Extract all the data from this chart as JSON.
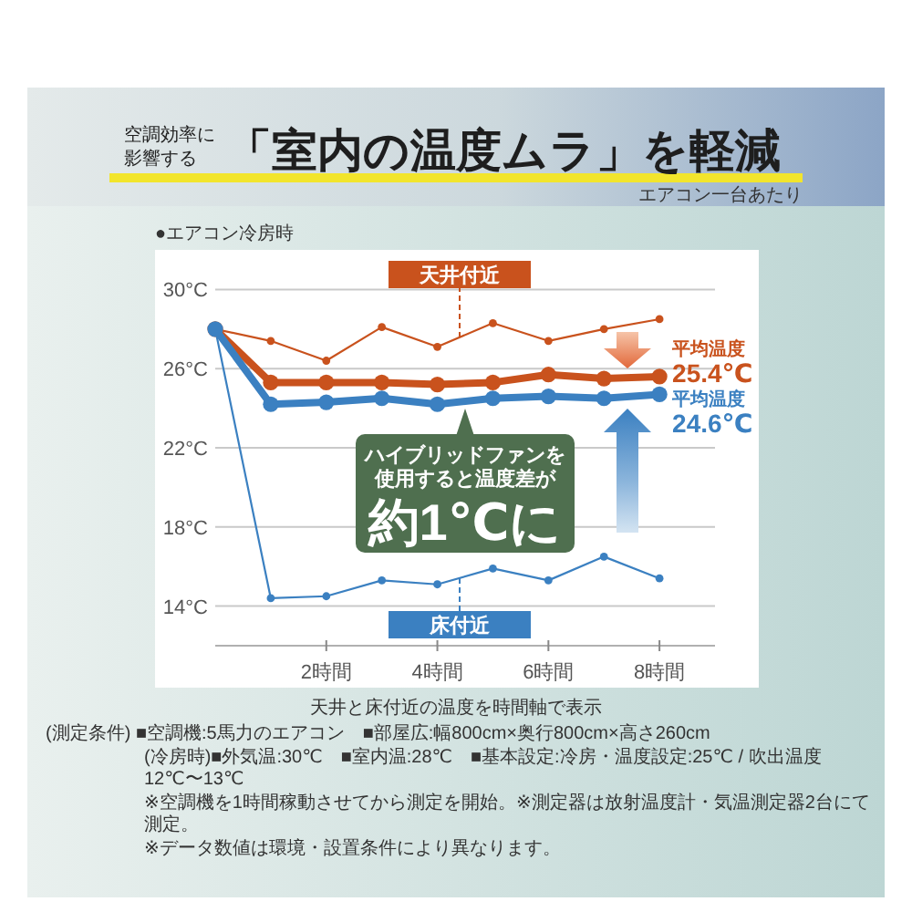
{
  "chart_data": {
    "type": "line",
    "title": "「室内の温度ムラ」を軽減",
    "subtitle": "エアコン一台あたり",
    "xlabel": "天井と床付近の温度を時間軸で表示",
    "x": [
      0,
      1,
      2,
      3,
      4,
      5,
      6,
      7,
      8
    ],
    "xlim": [
      0,
      9
    ],
    "xticks": [
      {
        "value": 2,
        "label": "2時間"
      },
      {
        "value": 4,
        "label": "4時間"
      },
      {
        "value": 6,
        "label": "6時間"
      },
      {
        "value": 8,
        "label": "8時間"
      }
    ],
    "ylim": [
      12,
      32
    ],
    "yticks": [
      {
        "value": 14,
        "label": "14°C"
      },
      {
        "value": 18,
        "label": "18°C"
      },
      {
        "value": 22,
        "label": "22°C"
      },
      {
        "value": 26,
        "label": "26°C"
      },
      {
        "value": 30,
        "label": "30°C"
      }
    ],
    "grid": "y",
    "marker": "circle",
    "line_style": "solid",
    "series": [
      {
        "name": "天井付近",
        "color": "#c9521d",
        "values": [
          28,
          27.4,
          26.4,
          28.1,
          27.1,
          28.3,
          27.4,
          28.0,
          28.5
        ]
      },
      {
        "name": "床付近",
        "color": "#3b80c1",
        "values": [
          28,
          14.4,
          14.5,
          15.3,
          15.1,
          15.9,
          15.3,
          16.5,
          15.4
        ]
      },
      {
        "color": "#c9521d",
        "values": [
          28,
          25.3,
          25.3,
          25.3,
          25.2,
          25.3,
          25.7,
          25.5,
          25.6
        ]
      },
      {
        "color": "#3b80c1",
        "values": [
          28,
          24.2,
          24.3,
          24.5,
          24.2,
          24.5,
          24.6,
          24.5,
          24.7
        ]
      }
    ],
    "annotations": [
      "空調効率に影響する",
      "●エアコン冷房時",
      "ハイブリッドファンを使用すると温度差が",
      "約1℃に",
      "平均温度\n25.4℃",
      "平均温度\n24.6℃",
      "(測定条件) ■空調機:5馬力のエアコン　■部屋広:幅800cm×奥行800cm×高さ260cm",
      "(冷房時)■外気温:30℃　■室内温:28℃　■基本設定:冷房・温度設定:25℃ / 吹出温度 12℃〜13℃",
      "※空調機を1時間稼動させてから測定を開始。※測定器は放射温度計・気温測定器2台にて測定。",
      "※データ数値は環境・設置条件により異なります。"
    ]
  }
}
